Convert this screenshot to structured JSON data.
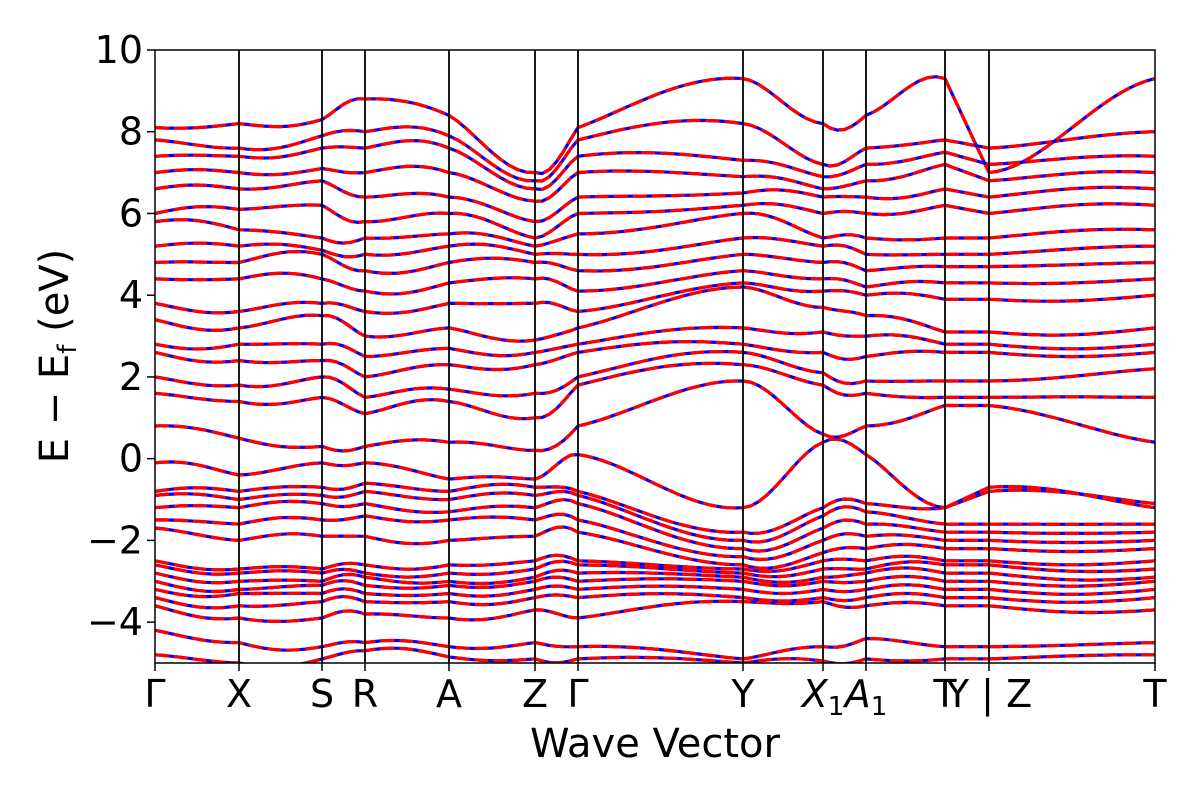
{
  "chart_data": {
    "type": "line",
    "title": "",
    "xlabel": "Wave Vector",
    "ylabel_parts": {
      "main": "E − E",
      "sub": "f",
      "unit": " (eV)"
    },
    "ylim": [
      -5,
      10
    ],
    "yticks": [
      -4,
      -2,
      0,
      2,
      4,
      6,
      8,
      10
    ],
    "ytick_labels": [
      "−4",
      "−2",
      "0",
      "2",
      "4",
      "6",
      "8",
      "10"
    ],
    "k_ticks": [
      {
        "k": 0.0,
        "label": "Γ"
      },
      {
        "k": 0.084,
        "label": "X"
      },
      {
        "k": 0.167,
        "label": "S"
      },
      {
        "k": 0.21,
        "label": "R"
      },
      {
        "k": 0.294,
        "label": "A"
      },
      {
        "k": 0.38,
        "label": "Z"
      },
      {
        "k": 0.423,
        "label": "Γ"
      },
      {
        "k": 0.588,
        "label": "Y"
      },
      {
        "k": 0.668,
        "label": "X",
        "sub": "1"
      },
      {
        "k": 0.711,
        "label": "A",
        "sub": "1"
      },
      {
        "k": 0.79,
        "label": "T"
      },
      {
        "k": 0.834,
        "label": "Y | Z"
      },
      {
        "k": 1.0,
        "label": "T"
      }
    ],
    "segment_break": [
      0.79,
      0.834
    ],
    "series": [
      {
        "style": "solid",
        "color": "#0000ff"
      },
      {
        "style": "dashed",
        "color": "#ff0000"
      }
    ],
    "bands": [
      {
        "E": [
          -4.8,
          -5.0,
          -4.9,
          -4.7,
          -4.85,
          -4.9,
          -4.9,
          -5.0,
          -4.95,
          -4.9,
          -4.9,
          -4.9,
          -4.8
        ]
      },
      {
        "E": [
          -4.2,
          -4.5,
          -4.6,
          -4.5,
          -4.6,
          -4.5,
          -4.6,
          -4.9,
          -4.6,
          -4.4,
          -4.6,
          -4.6,
          -4.5
        ]
      },
      {
        "E": [
          -3.6,
          -3.9,
          -3.9,
          -3.8,
          -3.9,
          -3.7,
          -3.9,
          -3.5,
          -3.5,
          -3.6,
          -3.6,
          -3.6,
          -3.7
        ]
      },
      {
        "E": [
          -3.4,
          -3.6,
          -3.5,
          -3.5,
          -3.5,
          -3.4,
          -3.4,
          -3.4,
          -3.4,
          -3.4,
          -3.4,
          -3.4,
          -3.4
        ]
      },
      {
        "E": [
          -3.2,
          -3.3,
          -3.3,
          -3.3,
          -3.3,
          -3.2,
          -3.2,
          -3.2,
          -3.2,
          -3.2,
          -3.2,
          -3.2,
          -3.2
        ]
      },
      {
        "E": [
          -3.0,
          -3.2,
          -3.1,
          -3.1,
          -3.1,
          -3.0,
          -3.0,
          -3.0,
          -3.0,
          -3.0,
          -3.0,
          -3.0,
          -3.0
        ]
      },
      {
        "E": [
          -2.8,
          -3.0,
          -3.0,
          -2.9,
          -3.0,
          -2.9,
          -2.8,
          -2.9,
          -2.9,
          -2.8,
          -2.8,
          -2.8,
          -2.9
        ]
      },
      {
        "E": [
          -2.6,
          -2.8,
          -2.8,
          -2.8,
          -2.8,
          -2.7,
          -2.6,
          -2.8,
          -2.7,
          -2.7,
          -2.6,
          -2.6,
          -2.7
        ]
      },
      {
        "E": [
          -2.5,
          -2.7,
          -2.7,
          -2.6,
          -2.6,
          -2.5,
          -2.5,
          -2.7,
          -2.5,
          -2.5,
          -2.5,
          -2.5,
          -2.5
        ]
      },
      {
        "E": [
          -1.7,
          -2.0,
          -1.9,
          -1.9,
          -2.0,
          -1.9,
          -1.8,
          -2.6,
          -2.3,
          -2.2,
          -2.2,
          -2.2,
          -2.2
        ]
      },
      {
        "E": [
          -1.5,
          -1.6,
          -1.5,
          -1.4,
          -1.5,
          -1.5,
          -1.5,
          -2.4,
          -2.0,
          -1.9,
          -2.0,
          -2.0,
          -2.0
        ]
      },
      {
        "E": [
          -1.2,
          -1.2,
          -1.1,
          -1.1,
          -1.3,
          -1.2,
          -1.1,
          -2.2,
          -1.7,
          -1.6,
          -1.8,
          -1.8,
          -1.8
        ]
      },
      {
        "E": [
          -0.9,
          -1.0,
          -0.9,
          -0.8,
          -1.0,
          -0.9,
          -0.9,
          -2.0,
          -1.4,
          -1.3,
          -1.6,
          -1.6,
          -1.6
        ]
      },
      {
        "E": [
          -0.8,
          -0.8,
          -0.7,
          -0.6,
          -0.8,
          -0.7,
          -0.8,
          -1.8,
          -1.2,
          -1.1,
          -1.2,
          -0.7,
          -1.2
        ]
      },
      {
        "E": [
          -0.1,
          -0.4,
          -0.1,
          -0.1,
          -0.5,
          -0.5,
          0.1,
          -1.2,
          0.4,
          0.1,
          -1.2,
          -0.8,
          -1.1
        ]
      },
      {
        "E": [
          0.8,
          0.5,
          0.3,
          0.3,
          0.4,
          0.2,
          0.8,
          1.9,
          0.6,
          0.8,
          1.3,
          1.3,
          0.4
        ]
      },
      {
        "E": [
          1.6,
          1.4,
          1.5,
          1.1,
          1.4,
          1.0,
          1.8,
          2.3,
          1.8,
          1.6,
          1.5,
          1.5,
          1.5
        ]
      },
      {
        "E": [
          2.0,
          1.8,
          2.0,
          1.5,
          1.7,
          1.6,
          2.0,
          2.6,
          2.1,
          1.9,
          1.9,
          1.9,
          2.2
        ]
      },
      {
        "E": [
          2.6,
          2.4,
          2.4,
          2.0,
          2.3,
          2.3,
          2.6,
          2.8,
          2.6,
          2.5,
          2.6,
          2.6,
          2.6
        ]
      },
      {
        "E": [
          2.8,
          2.8,
          2.8,
          2.5,
          2.7,
          2.6,
          2.8,
          3.2,
          3.1,
          3.0,
          2.8,
          2.8,
          2.8
        ]
      },
      {
        "E": [
          3.4,
          3.2,
          3.5,
          3.0,
          3.2,
          2.9,
          3.2,
          4.2,
          3.7,
          3.5,
          3.1,
          3.1,
          3.2
        ]
      },
      {
        "E": [
          3.8,
          3.6,
          3.8,
          3.6,
          3.8,
          3.8,
          3.6,
          4.3,
          4.1,
          4.0,
          3.9,
          3.9,
          4.0
        ]
      },
      {
        "E": [
          4.4,
          4.4,
          4.4,
          4.1,
          4.3,
          4.4,
          4.1,
          4.6,
          4.4,
          4.2,
          4.3,
          4.3,
          4.4
        ]
      },
      {
        "E": [
          4.8,
          4.8,
          5.0,
          4.6,
          4.8,
          4.8,
          4.6,
          5.0,
          4.8,
          4.6,
          4.7,
          4.7,
          4.8
        ]
      },
      {
        "E": [
          5.2,
          5.2,
          5.1,
          5.0,
          5.2,
          5.0,
          5.0,
          5.4,
          5.2,
          5.0,
          5.0,
          5.0,
          5.2
        ]
      },
      {
        "E": [
          5.8,
          5.6,
          5.4,
          5.4,
          5.5,
          5.2,
          5.5,
          6.0,
          5.4,
          5.4,
          5.4,
          5.4,
          5.6
        ]
      },
      {
        "E": [
          6.0,
          6.1,
          6.2,
          5.8,
          6.0,
          5.4,
          6.0,
          6.2,
          6.0,
          6.0,
          6.2,
          6.0,
          6.2
        ]
      },
      {
        "E": [
          6.6,
          6.6,
          6.8,
          6.4,
          6.4,
          5.8,
          6.4,
          6.5,
          6.4,
          6.4,
          6.6,
          6.4,
          6.6
        ]
      },
      {
        "E": [
          7.0,
          7.0,
          7.1,
          7.0,
          7.0,
          6.3,
          7.0,
          6.9,
          6.6,
          6.8,
          7.2,
          6.8,
          7.0
        ]
      },
      {
        "E": [
          7.4,
          7.4,
          7.6,
          7.6,
          7.6,
          6.6,
          7.4,
          7.3,
          6.9,
          7.2,
          7.5,
          7.2,
          7.4
        ]
      },
      {
        "E": [
          7.8,
          7.6,
          7.9,
          8.0,
          7.9,
          6.8,
          7.8,
          8.2,
          7.2,
          7.6,
          7.8,
          7.6,
          8.0
        ]
      },
      {
        "E": [
          8.1,
          8.2,
          8.3,
          8.8,
          8.4,
          7.0,
          8.1,
          9.3,
          8.2,
          8.4,
          9.3,
          7.0,
          9.3
        ]
      }
    ]
  }
}
